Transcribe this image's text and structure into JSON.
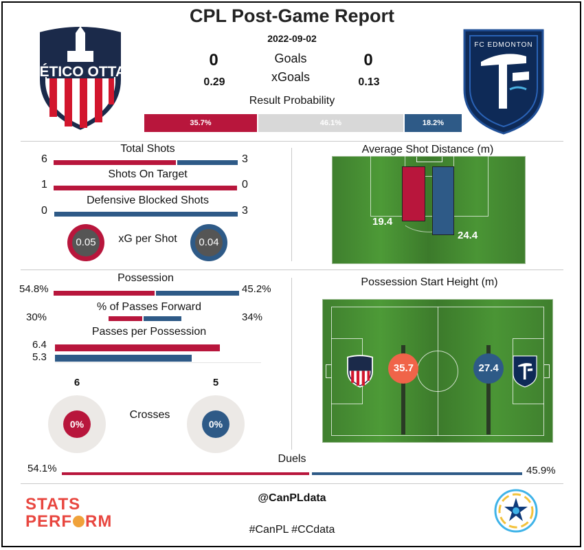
{
  "header": {
    "title": "CPL Post-Game Report",
    "date": "2022-09-02",
    "home_team": "ATLÉTICO OTTAWA",
    "away_team": "FC EDMONTON",
    "goals_label": "Goals",
    "xgoals_label": "xGoals",
    "home_goals": "0",
    "away_goals": "0",
    "home_xg": "0.29",
    "away_xg": "0.13",
    "result_prob_label": "Result Probability",
    "prob_home": "35.7%",
    "prob_draw": "46.1%",
    "prob_away": "18.2%",
    "prob_home_value": 35.7,
    "prob_draw_value": 46.1,
    "prob_away_value": 18.2
  },
  "shots": {
    "total_label": "Total Shots",
    "total_home": "6",
    "total_away": "3",
    "on_target_label": "Shots On Target",
    "on_target_home": "1",
    "on_target_away": "0",
    "blocked_label": "Defensive Blocked Shots",
    "blocked_home": "0",
    "blocked_away": "3",
    "xg_per_shot_label": "xG per Shot",
    "xg_per_shot_home": "0.05",
    "xg_per_shot_away": "0.04"
  },
  "shot_distance": {
    "label": "Average Shot Distance (m)",
    "home": "19.4",
    "away": "24.4",
    "home_value": 19.4,
    "away_value": 24.4
  },
  "possession": {
    "label": "Possession",
    "home": "54.8%",
    "away": "45.2%",
    "home_value": 54.8,
    "forward_label": "% of Passes Forward",
    "forward_home": "30%",
    "forward_away": "34%",
    "forward_home_value": 30,
    "forward_away_value": 34,
    "ppp_label": "Passes per Possession",
    "ppp_home": "6.4",
    "ppp_away": "5.3",
    "ppp_home_value": 6.4,
    "ppp_away_value": 5.3
  },
  "start_height": {
    "label": "Possession Start Height (m)",
    "home": "35.7",
    "away": "27.4",
    "home_value": 35.7,
    "away_value": 27.4
  },
  "crosses": {
    "label": "Crosses",
    "home_total": "6",
    "away_total": "5",
    "home_completed": "0",
    "away_completed": "0",
    "home_pct": "0%",
    "away_pct": "0%"
  },
  "duels": {
    "label": "Duels",
    "home": "54.1%",
    "away": "45.9%",
    "home_value": 54.1
  },
  "footer": {
    "handle": "@CanPLdata",
    "hashtags": "#CanPL #CCdata",
    "brand_line1": "STATS",
    "brand_line2a": "PERF",
    "brand_line2b": "RM"
  },
  "colors": {
    "home": "#b8163c",
    "away": "#2e5a87",
    "draw": "#d8d8d8",
    "home_height": "#f06449"
  }
}
